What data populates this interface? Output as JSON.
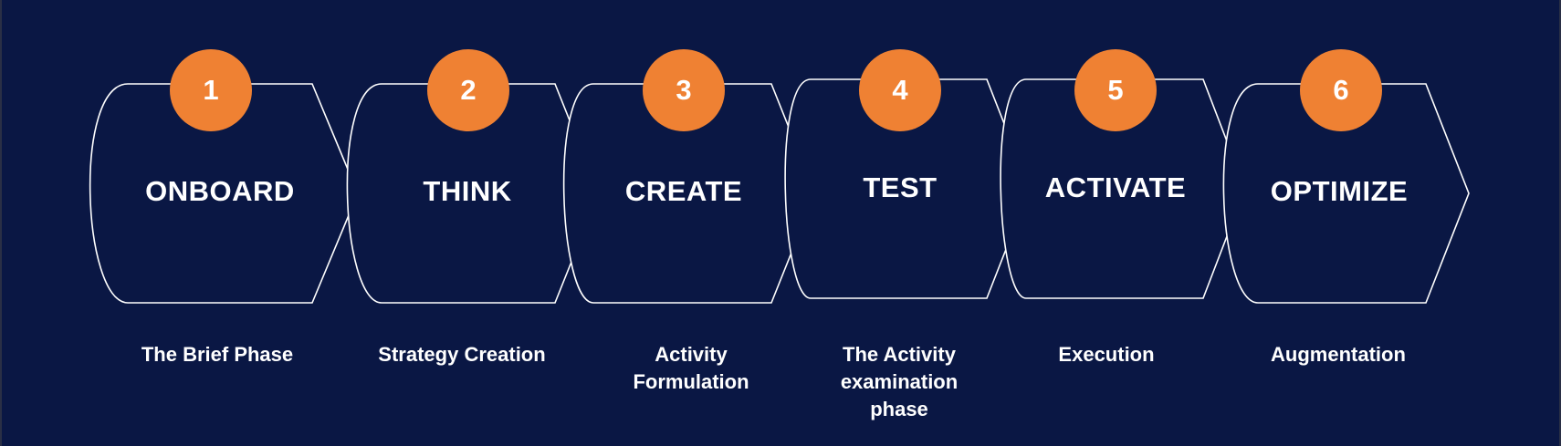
{
  "colors": {
    "background": "#0a1744",
    "outline": "#ffffff",
    "badge": "#ef8133"
  },
  "steps": [
    {
      "number": "1",
      "title": "ONBOARD",
      "description": "The Brief Phase"
    },
    {
      "number": "2",
      "title": "THINK",
      "description": "Strategy Creation"
    },
    {
      "number": "3",
      "title": "CREATE",
      "description": "Activity Formulation"
    },
    {
      "number": "4",
      "title": "TEST",
      "description": "The Activity examination phase"
    },
    {
      "number": "5",
      "title": "ACTIVATE",
      "description": "Execution"
    },
    {
      "number": "6",
      "title": "OPTIMIZE",
      "description": "Augmentation"
    }
  ]
}
